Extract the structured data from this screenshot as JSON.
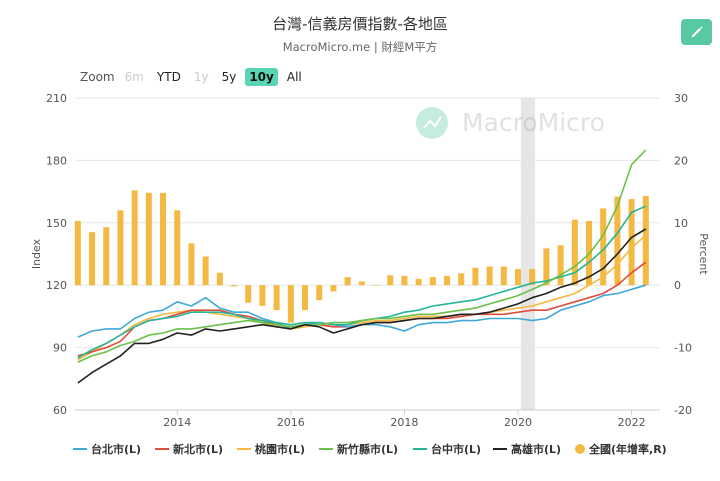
{
  "header": {
    "title": "台灣-信義房價指數-各地區",
    "subtitle": "MacroMicro.me | 財經M平方"
  },
  "watermark": {
    "text": "MacroMicro"
  },
  "zoom": {
    "label": "Zoom",
    "options": [
      {
        "label": "6m",
        "state": "disabled"
      },
      {
        "label": "YTD",
        "state": "normal"
      },
      {
        "label": "1y",
        "state": "disabled"
      },
      {
        "label": "5y",
        "state": "normal"
      },
      {
        "label": "10y",
        "state": "active"
      },
      {
        "label": "All",
        "state": "normal"
      }
    ]
  },
  "colors": {
    "accent": "#59c9a5",
    "taipei": "#3fa9d8",
    "newtaipei": "#e24b3d",
    "taoyuan": "#f4b942",
    "hsinchu": "#6cc04a",
    "taichung": "#27b59a",
    "kaohsiung": "#222222",
    "national": "#f4b942"
  },
  "chart_data": {
    "type": "line",
    "ylabel": "Index",
    "y2label": "Percent",
    "ylim": [
      60,
      210
    ],
    "y2lim": [
      -20,
      30
    ],
    "yticks": [
      60,
      90,
      120,
      150,
      180,
      210
    ],
    "y2ticks": [
      -20,
      -10,
      0,
      10,
      20,
      30
    ],
    "xticks": [
      "2014",
      "2016",
      "2018",
      "2020",
      "2022"
    ],
    "xlim": [
      2012.2,
      2022.5
    ],
    "legend_position": "bottom",
    "grid": true,
    "shaded_period": [
      2020.05,
      2020.3
    ],
    "series": [
      {
        "name": "台北市(L)",
        "key": "taipei",
        "axis": "left",
        "type": "line",
        "x": [
          2012.25,
          2012.5,
          2012.75,
          2013.0,
          2013.25,
          2013.5,
          2013.75,
          2014.0,
          2014.25,
          2014.5,
          2014.75,
          2015.0,
          2015.25,
          2015.5,
          2015.75,
          2016.0,
          2016.25,
          2016.5,
          2016.75,
          2017.0,
          2017.25,
          2017.5,
          2017.75,
          2018.0,
          2018.25,
          2018.5,
          2018.75,
          2019.0,
          2019.25,
          2019.5,
          2019.75,
          2020.0,
          2020.25,
          2020.5,
          2020.75,
          2021.0,
          2021.25,
          2021.5,
          2021.75,
          2022.0,
          2022.25
        ],
        "values": [
          95,
          98,
          99,
          99,
          104,
          107,
          108,
          112,
          110,
          114,
          109,
          107,
          107,
          104,
          102,
          99,
          101,
          102,
          101,
          100,
          101,
          101,
          100,
          98,
          101,
          102,
          102,
          103,
          103,
          104,
          104,
          104,
          103,
          104,
          108,
          110,
          112,
          115,
          116,
          118,
          120
        ]
      },
      {
        "name": "新北市(L)",
        "key": "newtaipei",
        "axis": "left",
        "type": "line",
        "x": [
          2012.25,
          2012.5,
          2012.75,
          2013.0,
          2013.25,
          2013.5,
          2013.75,
          2014.0,
          2014.25,
          2014.5,
          2014.75,
          2015.0,
          2015.25,
          2015.5,
          2015.75,
          2016.0,
          2016.25,
          2016.5,
          2016.75,
          2017.0,
          2017.25,
          2017.5,
          2017.75,
          2018.0,
          2018.25,
          2018.5,
          2018.75,
          2019.0,
          2019.25,
          2019.5,
          2019.75,
          2020.0,
          2020.25,
          2020.5,
          2020.75,
          2021.0,
          2021.25,
          2021.5,
          2021.75,
          2022.0,
          2022.25
        ],
        "values": [
          86,
          88,
          90,
          93,
          100,
          103,
          104,
          106,
          108,
          108,
          108,
          106,
          105,
          103,
          101,
          100,
          101,
          101,
          100,
          100,
          101,
          102,
          102,
          103,
          104,
          104,
          104,
          105,
          106,
          106,
          106,
          107,
          108,
          108,
          110,
          112,
          114,
          116,
          120,
          126,
          131
        ]
      },
      {
        "name": "桃園市(L)",
        "key": "taoyuan",
        "axis": "left",
        "type": "line",
        "x": [
          2012.25,
          2012.5,
          2012.75,
          2013.0,
          2013.25,
          2013.5,
          2013.75,
          2014.0,
          2014.25,
          2014.5,
          2014.75,
          2015.0,
          2015.25,
          2015.5,
          2015.75,
          2016.0,
          2016.25,
          2016.5,
          2016.75,
          2017.0,
          2017.25,
          2017.5,
          2017.75,
          2018.0,
          2018.25,
          2018.5,
          2018.75,
          2019.0,
          2019.25,
          2019.5,
          2019.75,
          2020.0,
          2020.25,
          2020.5,
          2020.75,
          2021.0,
          2021.25,
          2021.5,
          2021.75,
          2022.0,
          2022.25
        ],
        "values": [
          84,
          88,
          92,
          96,
          101,
          104,
          106,
          107,
          108,
          107,
          106,
          105,
          104,
          102,
          100,
          99,
          100,
          101,
          100,
          101,
          102,
          103,
          103,
          104,
          105,
          105,
          105,
          106,
          106,
          107,
          108,
          109,
          110,
          112,
          114,
          116,
          120,
          124,
          130,
          138,
          144
        ]
      },
      {
        "name": "新竹縣市(L)",
        "key": "hsinchu",
        "axis": "left",
        "type": "line",
        "x": [
          2012.25,
          2012.5,
          2012.75,
          2013.0,
          2013.25,
          2013.5,
          2013.75,
          2014.0,
          2014.25,
          2014.5,
          2014.75,
          2015.0,
          2015.25,
          2015.5,
          2015.75,
          2016.0,
          2016.25,
          2016.5,
          2016.75,
          2017.0,
          2017.25,
          2017.5,
          2017.75,
          2018.0,
          2018.25,
          2018.5,
          2018.75,
          2019.0,
          2019.25,
          2019.5,
          2019.75,
          2020.0,
          2020.25,
          2020.5,
          2020.75,
          2021.0,
          2021.25,
          2021.5,
          2021.75,
          2022.0,
          2022.25
        ],
        "values": [
          83,
          86,
          88,
          91,
          93,
          96,
          97,
          99,
          99,
          100,
          101,
          102,
          103,
          102,
          101,
          100,
          101,
          101,
          102,
          102,
          103,
          104,
          104,
          105,
          106,
          106,
          107,
          108,
          109,
          111,
          113,
          115,
          118,
          121,
          125,
          129,
          135,
          144,
          158,
          178,
          185
        ]
      },
      {
        "name": "台中市(L)",
        "key": "taichung",
        "axis": "left",
        "type": "line",
        "x": [
          2012.25,
          2012.5,
          2012.75,
          2013.0,
          2013.25,
          2013.5,
          2013.75,
          2014.0,
          2014.25,
          2014.5,
          2014.75,
          2015.0,
          2015.25,
          2015.5,
          2015.75,
          2016.0,
          2016.25,
          2016.5,
          2016.75,
          2017.0,
          2017.25,
          2017.5,
          2017.75,
          2018.0,
          2018.25,
          2018.5,
          2018.75,
          2019.0,
          2019.25,
          2019.5,
          2019.75,
          2020.0,
          2020.25,
          2020.5,
          2020.75,
          2021.0,
          2021.25,
          2021.5,
          2021.75,
          2022.0,
          2022.25
        ],
        "values": [
          85,
          89,
          92,
          96,
          100,
          103,
          104,
          105,
          107,
          107,
          107,
          106,
          104,
          103,
          102,
          101,
          102,
          102,
          101,
          101,
          103,
          104,
          105,
          107,
          108,
          110,
          111,
          112,
          113,
          115,
          117,
          119,
          121,
          122,
          124,
          126,
          131,
          137,
          145,
          155,
          158
        ]
      },
      {
        "name": "高雄市(L)",
        "key": "kaohsiung",
        "axis": "left",
        "type": "line",
        "x": [
          2012.25,
          2012.5,
          2012.75,
          2013.0,
          2013.25,
          2013.5,
          2013.75,
          2014.0,
          2014.25,
          2014.5,
          2014.75,
          2015.0,
          2015.25,
          2015.5,
          2015.75,
          2016.0,
          2016.25,
          2016.5,
          2016.75,
          2017.0,
          2017.25,
          2017.5,
          2017.75,
          2018.0,
          2018.25,
          2018.5,
          2018.75,
          2019.0,
          2019.25,
          2019.5,
          2019.75,
          2020.0,
          2020.25,
          2020.5,
          2020.75,
          2021.0,
          2021.25,
          2021.5,
          2021.75,
          2022.0,
          2022.25
        ],
        "values": [
          73,
          78,
          82,
          86,
          92,
          92,
          94,
          97,
          96,
          99,
          98,
          99,
          100,
          101,
          100,
          99,
          101,
          100,
          97,
          99,
          101,
          102,
          102,
          103,
          104,
          104,
          105,
          106,
          106,
          107,
          109,
          111,
          114,
          116,
          119,
          121,
          124,
          128,
          135,
          143,
          147
        ]
      },
      {
        "name": "全國(年增率,R)",
        "key": "national",
        "axis": "right",
        "type": "bar",
        "x": [
          2012.25,
          2012.5,
          2012.75,
          2013.0,
          2013.25,
          2013.5,
          2013.75,
          2014.0,
          2014.25,
          2014.5,
          2014.75,
          2015.0,
          2015.25,
          2015.5,
          2015.75,
          2016.0,
          2016.25,
          2016.5,
          2016.75,
          2017.0,
          2017.25,
          2017.5,
          2017.75,
          2018.0,
          2018.25,
          2018.5,
          2018.75,
          2019.0,
          2019.25,
          2019.5,
          2019.75,
          2020.0,
          2020.25,
          2020.5,
          2020.75,
          2021.0,
          2021.25,
          2021.5,
          2021.75,
          2022.0,
          2022.25
        ],
        "values": [
          10.3,
          8.5,
          9.3,
          12.0,
          15.2,
          14.8,
          14.8,
          12.0,
          6.7,
          4.6,
          2.0,
          -0.2,
          -2.8,
          -3.3,
          -4.0,
          -6.0,
          -4.0,
          -2.4,
          -1.0,
          1.3,
          0.6,
          0.0,
          1.6,
          1.5,
          1.0,
          1.3,
          1.5,
          1.9,
          2.8,
          3.0,
          3.0,
          2.6,
          2.6,
          5.9,
          6.4,
          10.5,
          10.3,
          12.3,
          14.2,
          13.8,
          14.3
        ]
      }
    ]
  }
}
